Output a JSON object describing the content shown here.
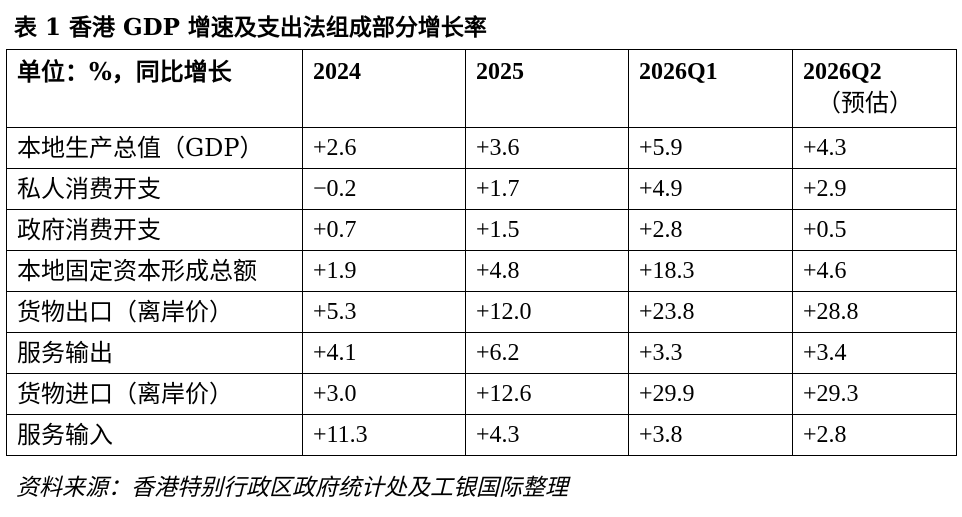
{
  "title": "表 1 香港 GDP 增速及支出法组成部分增长率",
  "header": {
    "unit": "单位：%，同比增长",
    "columns": [
      "2024",
      "2025",
      "2026Q1",
      "2026Q2"
    ],
    "column_note": "（预估）"
  },
  "rows": [
    {
      "label": "本地生产总值（GDP）",
      "values": [
        "+2.6",
        "+3.6",
        "+5.9",
        "+4.3"
      ]
    },
    {
      "label": "私人消费开支",
      "values": [
        "−0.2",
        "+1.7",
        "+4.9",
        "+2.9"
      ]
    },
    {
      "label": "政府消费开支",
      "values": [
        "+0.7",
        "+1.5",
        "+2.8",
        "+0.5"
      ]
    },
    {
      "label": "本地固定资本形成总额",
      "values": [
        "+1.9",
        "+4.8",
        "+18.3",
        "+4.6"
      ]
    },
    {
      "label": "货物出口（离岸价）",
      "values": [
        "+5.3",
        "+12.0",
        "+23.8",
        "+28.8"
      ]
    },
    {
      "label": "服务输出",
      "values": [
        "+4.1",
        "+6.2",
        "+3.3",
        "+3.4"
      ]
    },
    {
      "label": "货物进口（离岸价）",
      "values": [
        "+3.0",
        "+12.6",
        "+29.9",
        "+29.3"
      ]
    },
    {
      "label": "服务输入",
      "values": [
        "+11.3",
        "+4.3",
        "+3.8",
        "+2.8"
      ]
    }
  ],
  "source": "资料来源：香港特别行政区政府统计处及工银国际整理"
}
